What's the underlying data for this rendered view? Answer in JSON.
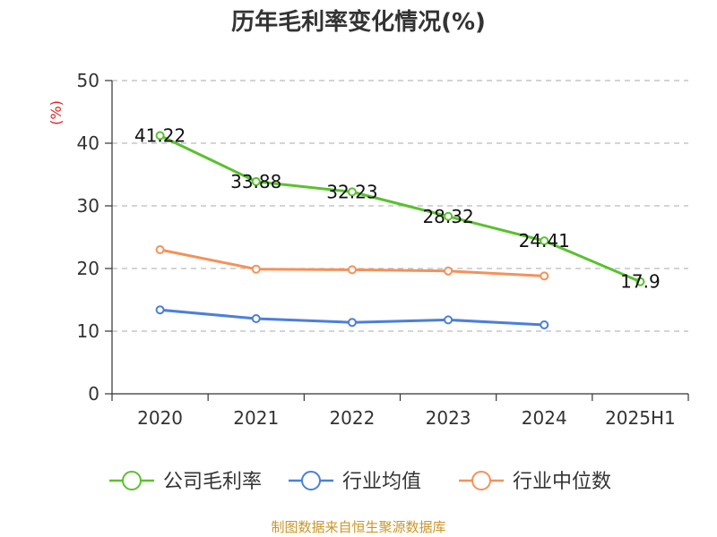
{
  "chart_data": {
    "type": "line",
    "title": "历年毛利率变化情况(%)",
    "unit_label": "(%)",
    "categories": [
      "2020",
      "2021",
      "2022",
      "2023",
      "2024",
      "2025H1"
    ],
    "ylim": [
      0,
      50
    ],
    "yticks": [
      "0",
      "10",
      "20",
      "30",
      "40",
      "50"
    ],
    "grid": true,
    "legend_position": "bottom",
    "series": [
      {
        "name": "公司毛利率",
        "color": "#5ac12e",
        "values": [
          41.22,
          33.88,
          32.23,
          28.32,
          24.41,
          17.9
        ],
        "labels": [
          "41.22",
          "33.88",
          "32.23",
          "28.32",
          "24.41",
          "17.9"
        ]
      },
      {
        "name": "行业均值",
        "color": "#4b7fdb",
        "values": [
          13.4,
          12.0,
          11.4,
          11.8,
          11.0,
          null
        ]
      },
      {
        "name": "行业中位数",
        "color": "#f5915a",
        "values": [
          23.0,
          19.9,
          19.8,
          19.6,
          18.8,
          null
        ]
      }
    ]
  },
  "source_text": "制图数据来自恒生聚源数据库"
}
